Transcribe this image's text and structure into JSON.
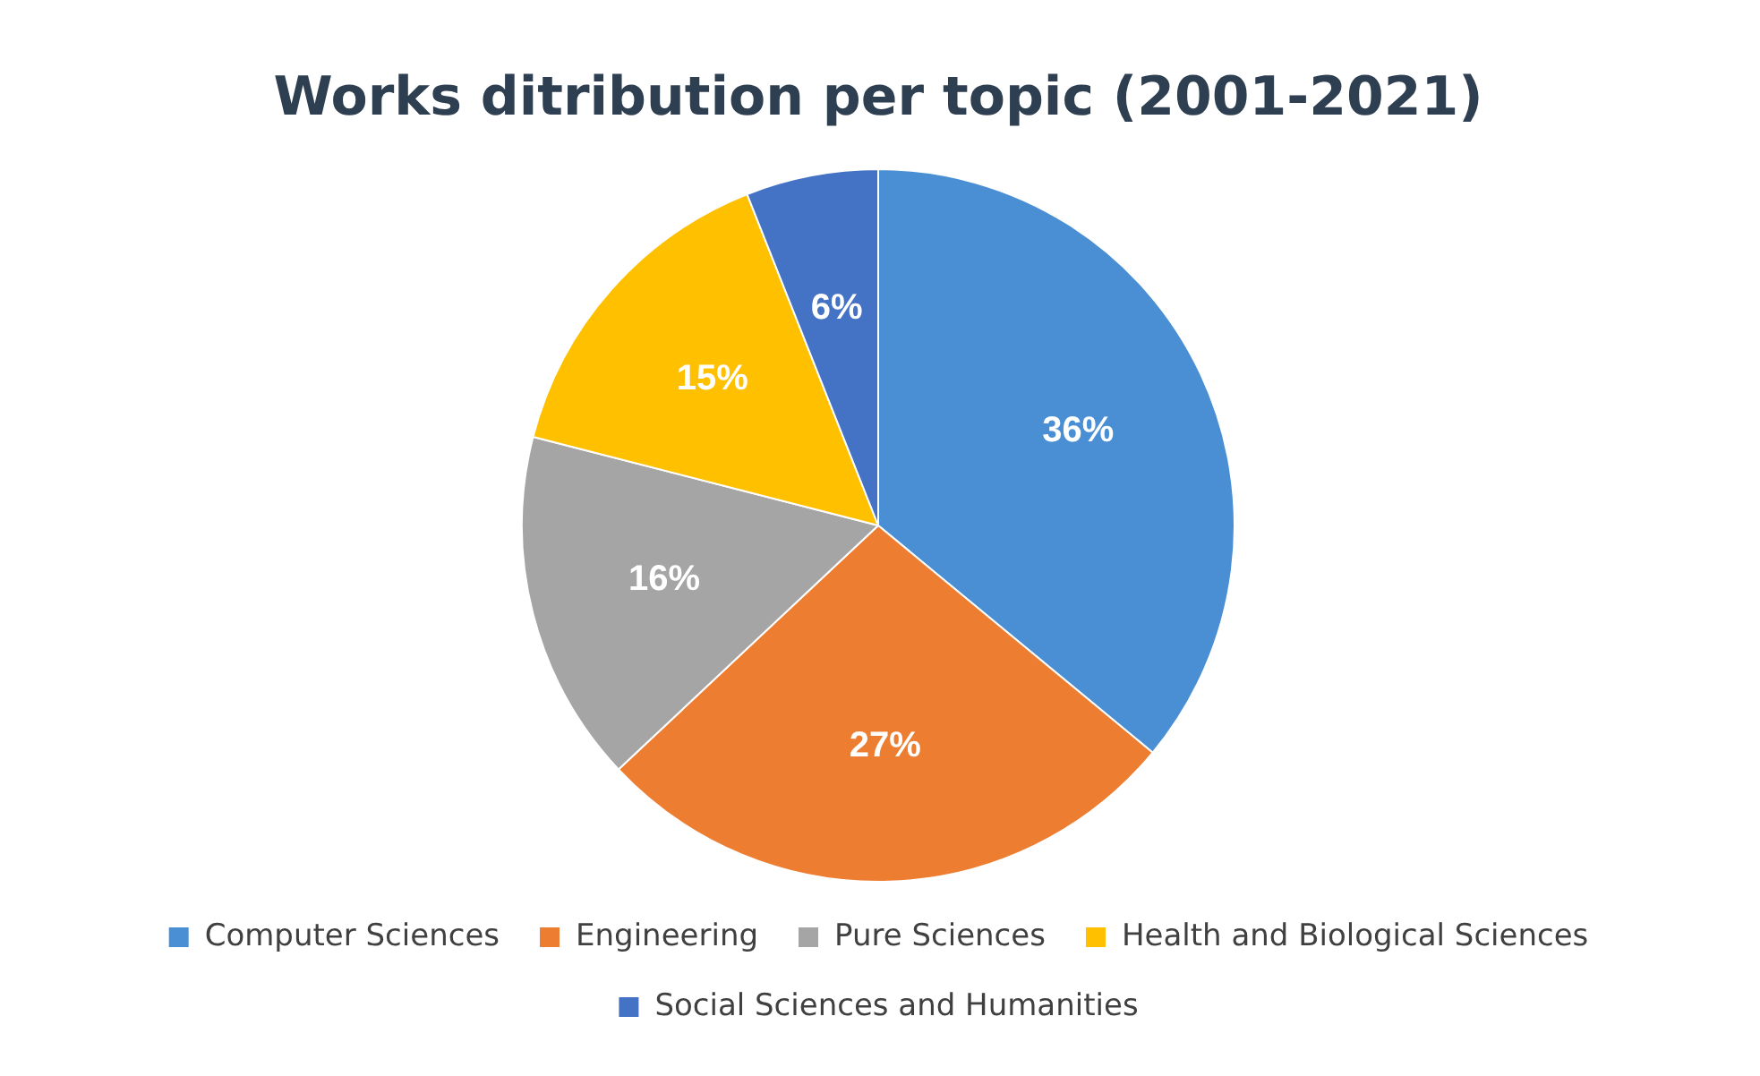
{
  "chart_data": {
    "type": "pie",
    "title": "Works ditribution per topic (2001-2021)",
    "categories": [
      "Computer Sciences",
      "Engineering",
      "Pure Sciences",
      "Health and Biological Sciences",
      "Social Sciences and Humanities"
    ],
    "values": [
      36,
      27,
      16,
      15,
      6
    ],
    "value_labels": [
      "36%",
      "27%",
      "16%",
      "15%",
      "6%"
    ],
    "colors": [
      "#4a8fd4",
      "#ed7d31",
      "#a5a5a5",
      "#ffc000",
      "#4472c4"
    ],
    "legend": "bottom"
  }
}
